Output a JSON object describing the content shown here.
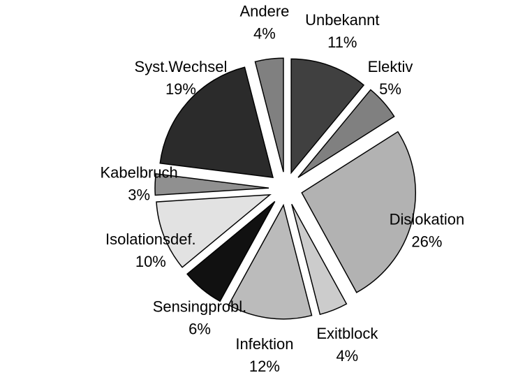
{
  "chart_data": {
    "type": "pie",
    "categories": [
      "Unbekannt",
      "Elektiv",
      "Dislokation",
      "Exitblock",
      "Infektion",
      "Sensingprobl.",
      "Isolationsdef.",
      "Kabelbruch",
      "Syst.Wechsel",
      "Andere"
    ],
    "values": [
      11,
      5,
      26,
      4,
      12,
      6,
      10,
      3,
      19,
      4
    ],
    "value_labels": [
      "11%",
      "5%",
      "26%",
      "4%",
      "12%",
      "6%",
      "10%",
      "3%",
      "19%",
      "4%"
    ],
    "colors": [
      "#404040",
      "#808080",
      "#b2b2b2",
      "#cccccc",
      "#bbbbbb",
      "#111111",
      "#e2e2e2",
      "#909090",
      "#2b2b2b",
      "#808080"
    ]
  }
}
